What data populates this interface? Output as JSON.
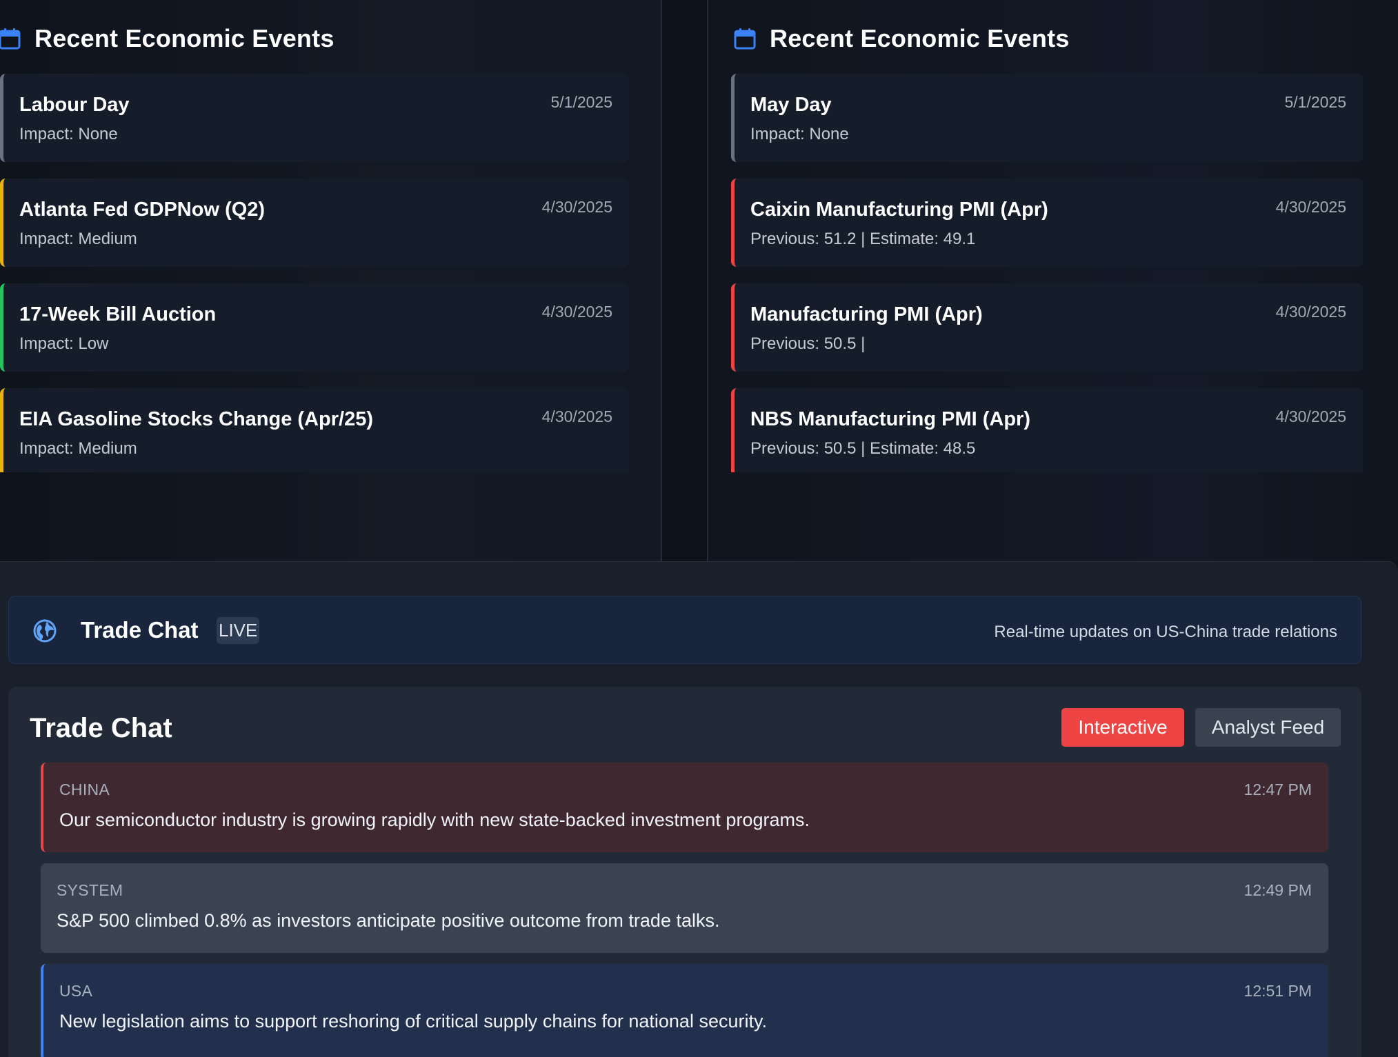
{
  "colors": {
    "accent_red": "#ef4444",
    "accent_blue": "#3b82f6",
    "impact_none": "#6b7280",
    "impact_medium": "#eab308",
    "impact_low": "#22c55e",
    "impact_high": "#ef4444"
  },
  "left_panel": {
    "title": "Recent Economic Events",
    "icon": "calendar-icon",
    "events": [
      {
        "name": "Labour Day",
        "detail": "Impact: None",
        "date": "5/1/2025",
        "impact": "none"
      },
      {
        "name": "Atlanta Fed GDPNow (Q2)",
        "detail": "Impact: Medium",
        "date": "4/30/2025",
        "impact": "medium"
      },
      {
        "name": "17-Week Bill Auction",
        "detail": "Impact: Low",
        "date": "4/30/2025",
        "impact": "low"
      },
      {
        "name": "EIA Gasoline Stocks Change (Apr/25)",
        "detail": "Impact: Medium",
        "date": "4/30/2025",
        "impact": "medium"
      }
    ]
  },
  "right_panel": {
    "title": "Recent Economic Events",
    "icon": "calendar-icon",
    "events": [
      {
        "name": "May Day",
        "detail": "Impact: None",
        "date": "5/1/2025",
        "impact": "none"
      },
      {
        "name": "Caixin Manufacturing PMI (Apr)",
        "detail": "Previous: 51.2 | Estimate: 49.1",
        "date": "4/30/2025",
        "impact": "high"
      },
      {
        "name": "Manufacturing PMI (Apr)",
        "detail": "Previous: 50.5 |",
        "date": "4/30/2025",
        "impact": "high"
      },
      {
        "name": "NBS Manufacturing PMI (Apr)",
        "detail": "Previous: 50.5 | Estimate: 48.5",
        "date": "4/30/2025",
        "impact": "high"
      }
    ]
  },
  "banner": {
    "icon": "globe-icon",
    "title": "Trade Chat",
    "badge": "LIVE",
    "description": "Real-time updates on US-China trade relations"
  },
  "chat": {
    "title": "Trade Chat",
    "tabs": [
      {
        "label": "Interactive",
        "active": true
      },
      {
        "label": "Analyst Feed",
        "active": false
      }
    ],
    "messages": [
      {
        "sender": "CHINA",
        "time": "12:47 PM",
        "text": "Our semiconductor industry is growing rapidly with new state-backed investment programs."
      },
      {
        "sender": "SYSTEM",
        "time": "12:49 PM",
        "text": "S&P 500 climbed 0.8% as investors anticipate positive outcome from trade talks."
      },
      {
        "sender": "USA",
        "time": "12:51 PM",
        "text": "New legislation aims to support reshoring of critical supply chains for national security."
      }
    ]
  }
}
